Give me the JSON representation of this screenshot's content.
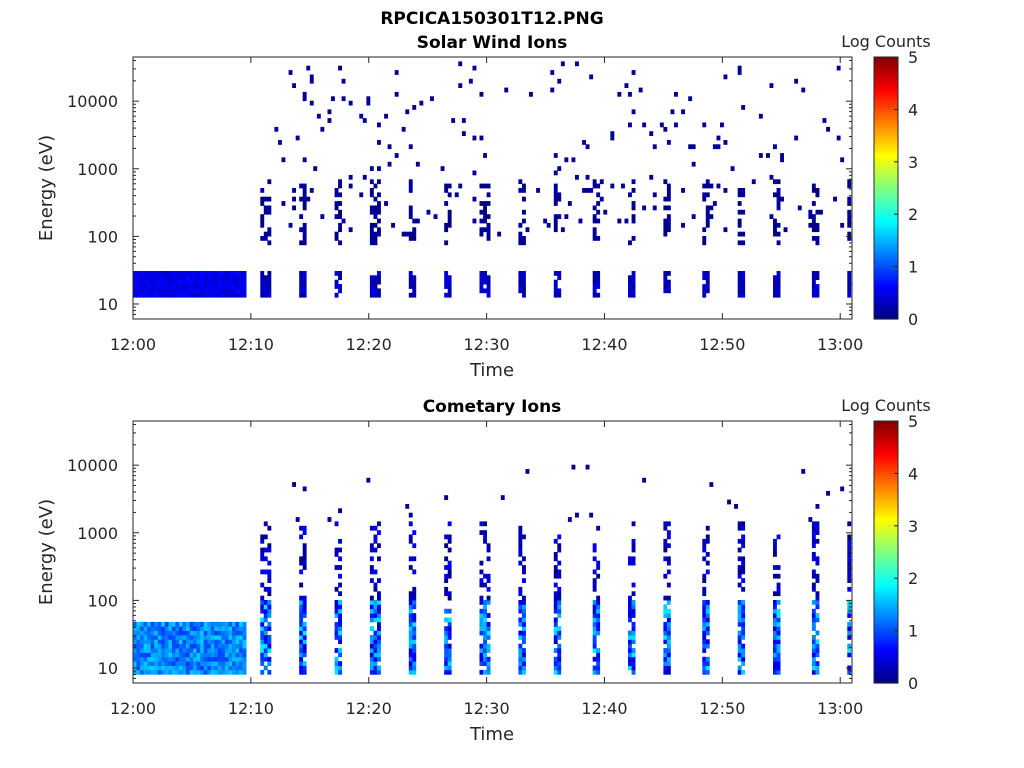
{
  "figure_title": "RPCICA150301T12.PNG",
  "chart_data": [
    {
      "type": "heatmap",
      "title": "Solar Wind Ions",
      "xlabel": "Time",
      "ylabel": "Energy (eV)",
      "x_ticks": [
        "12:00",
        "12:10",
        "12:20",
        "12:30",
        "12:40",
        "12:50",
        "13:00"
      ],
      "x_range_minutes": [
        0,
        61
      ],
      "y_ticks": [
        10,
        100,
        1000,
        10000
      ],
      "y_tick_labels": [
        "10",
        "100",
        "1000",
        "10000"
      ],
      "y_range": [
        6,
        45000
      ],
      "y_scale": "log",
      "colorbar": {
        "label": "Log Counts",
        "ticks": [
          0,
          1,
          2,
          3,
          4,
          5
        ],
        "range": [
          0,
          5
        ],
        "colormap": "jet"
      },
      "pattern": {
        "early_dense": {
          "t": [
            0,
            9.5
          ],
          "e": [
            13,
            30
          ],
          "level": 0.6
        },
        "sweeps": {
          "start": 10.8,
          "period": 3.1,
          "count": 16,
          "low_band": [
            13,
            30
          ],
          "mid_band": [
            80,
            700
          ],
          "max_level": 0.5
        },
        "sparse_hits": {
          "t": [
            12,
            60
          ],
          "e": [
            100,
            40000
          ],
          "level": 0.1,
          "density": 0.35
        }
      }
    },
    {
      "type": "heatmap",
      "title": "Cometary Ions",
      "xlabel": "Time",
      "ylabel": "Energy (eV)",
      "x_ticks": [
        "12:00",
        "12:10",
        "12:20",
        "12:30",
        "12:40",
        "12:50",
        "13:00"
      ],
      "x_range_minutes": [
        0,
        61
      ],
      "y_ticks": [
        10,
        100,
        1000,
        10000
      ],
      "y_tick_labels": [
        "10",
        "100",
        "1000",
        "10000"
      ],
      "y_range": [
        6,
        45000
      ],
      "y_scale": "log",
      "colorbar": {
        "label": "Log Counts",
        "ticks": [
          0,
          1,
          2,
          3,
          4,
          5
        ],
        "range": [
          0,
          5
        ],
        "colormap": "jet"
      },
      "pattern": {
        "early_dense": {
          "t": [
            0,
            9.5
          ],
          "e": [
            8,
            50
          ],
          "level": 1.5
        },
        "sweeps": {
          "start": 10.8,
          "period": 3.1,
          "count": 16,
          "low_band": [
            8,
            100
          ],
          "mid_band": [
            100,
            1500
          ],
          "max_level": 1.8
        },
        "sparse_hits": {
          "t": [
            12,
            60
          ],
          "e": [
            1500,
            10000
          ],
          "level": 0.1,
          "density": 0.15
        }
      }
    }
  ]
}
